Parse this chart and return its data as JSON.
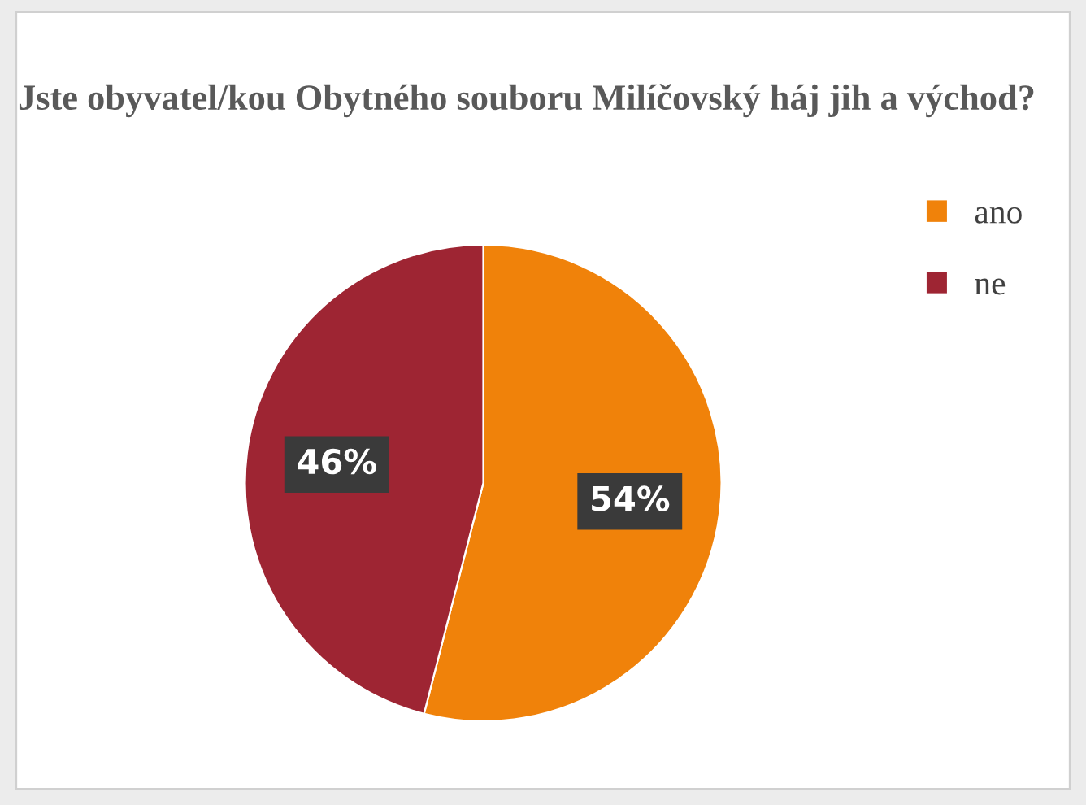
{
  "chart_data": {
    "type": "pie",
    "title": "Jste obyvatel/kou Obytného souboru Milíčovský háj jih a východ?",
    "categories": [
      "ano",
      "ne"
    ],
    "values": [
      54,
      46
    ],
    "colors": [
      "#f0820a",
      "#9e2533"
    ],
    "value_labels": [
      "54%",
      "46%"
    ],
    "legend": "top right"
  }
}
